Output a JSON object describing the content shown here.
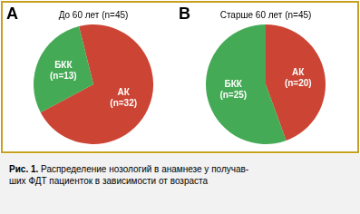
{
  "chart_data": [
    {
      "type": "pie",
      "title": "До 60 лет (n=45)",
      "annotations": [
        "A"
      ],
      "categories": [
        "АК\n(n=32)",
        "БКК\n(n=13)"
      ],
      "values": [
        32,
        13
      ],
      "colors": [
        "#cc4433",
        "#44aa55"
      ],
      "legend": false
    },
    {
      "type": "pie",
      "title": "Старше 60 лет (n=45)",
      "annotations": [
        "B"
      ],
      "categories": [
        "АК\n(n=20)",
        "БКК\n(n=25)"
      ],
      "values": [
        20,
        25
      ],
      "colors": [
        "#cc4433",
        "#44aa55"
      ],
      "legend": false
    }
  ],
  "annotations": [
    "Рис. 1.",
    " Распределение нозологий в анамнезе у получав-\nших ФДТ пациенток в зависимости от возраста"
  ]
}
